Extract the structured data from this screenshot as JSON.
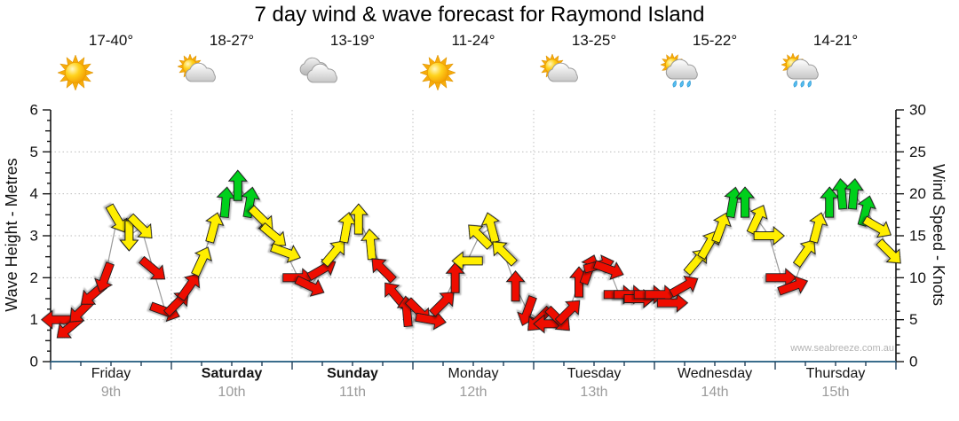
{
  "chart_data": {
    "type": "scatter",
    "subtype": "wind-arrow-timeseries",
    "title": "7 day wind & wave forecast for Raymond Island",
    "watermark": "www.seabreeze.com.au",
    "left_axis": {
      "label": "Wave Height - Metres",
      "min": 0,
      "max": 6,
      "tick_step": 1
    },
    "right_axis": {
      "label": "Wind Speed - Knots",
      "min": 0,
      "max": 30,
      "tick_step": 5
    },
    "axes_relation": "shared scale: 1 metre aligns with 5 knots",
    "grid": "dotted horizontal at each metre, dotted vertical at day boundaries",
    "arrow_colors": {
      "r": "#ee1100",
      "y": "#ffee00",
      "g": "#00d01c"
    },
    "arrow_color_meaning": {
      "r": "light wind",
      "y": "moderate wind",
      "g": "fresh wind"
    },
    "days": [
      {
        "name": "Friday",
        "date": "9th",
        "bold": false,
        "temp": "17-40°",
        "icon": "sunny",
        "arrows": [
          {
            "kn": 5,
            "dir": 270,
            "c": "r"
          },
          {
            "kn": 4,
            "dir": 230,
            "c": "r"
          },
          {
            "kn": 6,
            "dir": 225,
            "c": "r"
          },
          {
            "kn": 8,
            "dir": 230,
            "c": "r"
          },
          {
            "kn": 10,
            "dir": 200,
            "c": "r"
          },
          {
            "kn": 17,
            "dir": 150,
            "c": "y"
          },
          {
            "kn": 15,
            "dir": 180,
            "c": "y"
          },
          {
            "kn": 16,
            "dir": 135,
            "c": "y"
          },
          {
            "kn": 11,
            "dir": 130,
            "c": "r"
          },
          {
            "kn": 6,
            "dir": 110,
            "c": "r"
          }
        ]
      },
      {
        "name": "Saturday",
        "date": "10th",
        "bold": true,
        "temp": "18-27°",
        "icon": "partly-cloudy",
        "arrows": [
          {
            "kn": 7,
            "dir": 45,
            "c": "r"
          },
          {
            "kn": 9,
            "dir": 35,
            "c": "r"
          },
          {
            "kn": 12,
            "dir": 25,
            "c": "y"
          },
          {
            "kn": 16,
            "dir": 15,
            "c": "y"
          },
          {
            "kn": 19,
            "dir": 5,
            "c": "g"
          },
          {
            "kn": 21,
            "dir": 0,
            "c": "g"
          },
          {
            "kn": 19,
            "dir": 10,
            "c": "g"
          },
          {
            "kn": 17,
            "dir": 135,
            "c": "y"
          },
          {
            "kn": 15,
            "dir": 130,
            "c": "y"
          },
          {
            "kn": 13,
            "dir": 110,
            "c": "y"
          }
        ]
      },
      {
        "name": "Sunday",
        "date": "11th",
        "bold": true,
        "temp": "13-19°",
        "icon": "cloudy",
        "arrows": [
          {
            "kn": 10,
            "dir": 90,
            "c": "r"
          },
          {
            "kn": 9,
            "dir": 115,
            "c": "r"
          },
          {
            "kn": 11,
            "dir": 60,
            "c": "r"
          },
          {
            "kn": 13,
            "dir": 40,
            "c": "y"
          },
          {
            "kn": 16,
            "dir": 10,
            "c": "y"
          },
          {
            "kn": 17,
            "dir": 0,
            "c": "y"
          },
          {
            "kn": 14,
            "dir": 355,
            "c": "y"
          },
          {
            "kn": 11,
            "dir": 315,
            "c": "r"
          },
          {
            "kn": 8,
            "dir": 320,
            "c": "r"
          },
          {
            "kn": 6,
            "dir": 355,
            "c": "r"
          }
        ]
      },
      {
        "name": "Monday",
        "date": "12th",
        "bold": false,
        "temp": "11-24°",
        "icon": "sunny",
        "arrows": [
          {
            "kn": 6,
            "dir": 135,
            "c": "r"
          },
          {
            "kn": 5,
            "dir": 100,
            "c": "r"
          },
          {
            "kn": 7,
            "dir": 45,
            "c": "r"
          },
          {
            "kn": 10,
            "dir": 0,
            "c": "r"
          },
          {
            "kn": 12,
            "dir": 270,
            "c": "y"
          },
          {
            "kn": 15,
            "dir": 315,
            "c": "y"
          },
          {
            "kn": 16,
            "dir": 345,
            "c": "y"
          },
          {
            "kn": 13,
            "dir": 315,
            "c": "y"
          },
          {
            "kn": 9,
            "dir": 0,
            "c": "r"
          },
          {
            "kn": 6,
            "dir": 200,
            "c": "r"
          }
        ]
      },
      {
        "name": "Tuesday",
        "date": "13th",
        "bold": false,
        "temp": "13-25°",
        "icon": "partly-cloudy",
        "arrows": [
          {
            "kn": 5,
            "dir": 225,
            "c": "r"
          },
          {
            "kn": 4.5,
            "dir": 270,
            "c": "r"
          },
          {
            "kn": 5,
            "dir": 135,
            "c": "r"
          },
          {
            "kn": 6,
            "dir": 45,
            "c": "r"
          },
          {
            "kn": 9.5,
            "dir": 0,
            "c": "r"
          },
          {
            "kn": 11,
            "dir": 20,
            "c": "r"
          },
          {
            "kn": 11.5,
            "dir": 75,
            "c": "r"
          },
          {
            "kn": 11,
            "dir": 110,
            "c": "r"
          },
          {
            "kn": 8,
            "dir": 90,
            "c": "r"
          },
          {
            "kn": 8,
            "dir": 90,
            "c": "r"
          },
          {
            "kn": 7.5,
            "dir": 90,
            "c": "r"
          },
          {
            "kn": 8,
            "dir": 90,
            "c": "r"
          }
        ]
      },
      {
        "name": "Wednesday",
        "date": "14th",
        "bold": false,
        "temp": "15-22°",
        "icon": "showers",
        "arrows": [
          {
            "kn": 8,
            "dir": 90,
            "c": "r"
          },
          {
            "kn": 7,
            "dir": 90,
            "c": "r"
          },
          {
            "kn": 9,
            "dir": 60,
            "c": "r"
          },
          {
            "kn": 12,
            "dir": 40,
            "c": "y"
          },
          {
            "kn": 14,
            "dir": 30,
            "c": "y"
          },
          {
            "kn": 16,
            "dir": 20,
            "c": "y"
          },
          {
            "kn": 19,
            "dir": 10,
            "c": "g"
          },
          {
            "kn": 19,
            "dir": 0,
            "c": "g"
          },
          {
            "kn": 17,
            "dir": 25,
            "c": "y"
          },
          {
            "kn": 15,
            "dir": 90,
            "c": "y"
          }
        ]
      },
      {
        "name": "Thursday",
        "date": "15th",
        "bold": false,
        "temp": "14-21°",
        "icon": "showers",
        "arrows": [
          {
            "kn": 10,
            "dir": 90,
            "c": "r"
          },
          {
            "kn": 9,
            "dir": 70,
            "c": "r"
          },
          {
            "kn": 13,
            "dir": 35,
            "c": "y"
          },
          {
            "kn": 16,
            "dir": 15,
            "c": "y"
          },
          {
            "kn": 19,
            "dir": 0,
            "c": "g"
          },
          {
            "kn": 20,
            "dir": 355,
            "c": "g"
          },
          {
            "kn": 20,
            "dir": 5,
            "c": "g"
          },
          {
            "kn": 18,
            "dir": 15,
            "c": "g"
          },
          {
            "kn": 16,
            "dir": 120,
            "c": "y"
          },
          {
            "kn": 13,
            "dir": 135,
            "c": "y"
          }
        ]
      }
    ]
  }
}
